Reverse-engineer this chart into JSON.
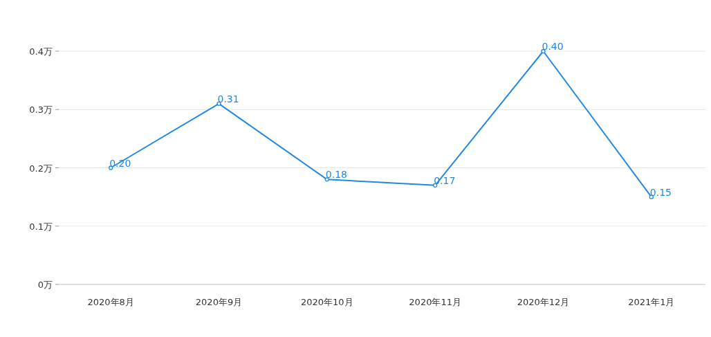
{
  "chart_data": {
    "type": "line",
    "categories": [
      "2020年8月",
      "2020年9月",
      "2020年10月",
      "2020年11月",
      "2020年12月",
      "2021年1月"
    ],
    "series": [
      {
        "color": "#2289e0",
        "values": [
          0.2,
          0.31,
          0.18,
          0.17,
          0.4,
          0.15
        ],
        "value_labels": [
          "0.20",
          "0.31",
          "0.18",
          "0.17",
          "0.40",
          "0.15"
        ]
      }
    ],
    "ylim": [
      0,
      0.4
    ],
    "yticks": [
      {
        "value": 0,
        "label": "0万"
      },
      {
        "value": 0.1,
        "label": "0.1万"
      },
      {
        "value": 0.2,
        "label": "0.2万"
      },
      {
        "value": 0.3,
        "label": "0.3万"
      },
      {
        "value": 0.4,
        "label": "0.4万"
      }
    ],
    "grid": "y",
    "marker": "circle",
    "line_style": "solid"
  }
}
